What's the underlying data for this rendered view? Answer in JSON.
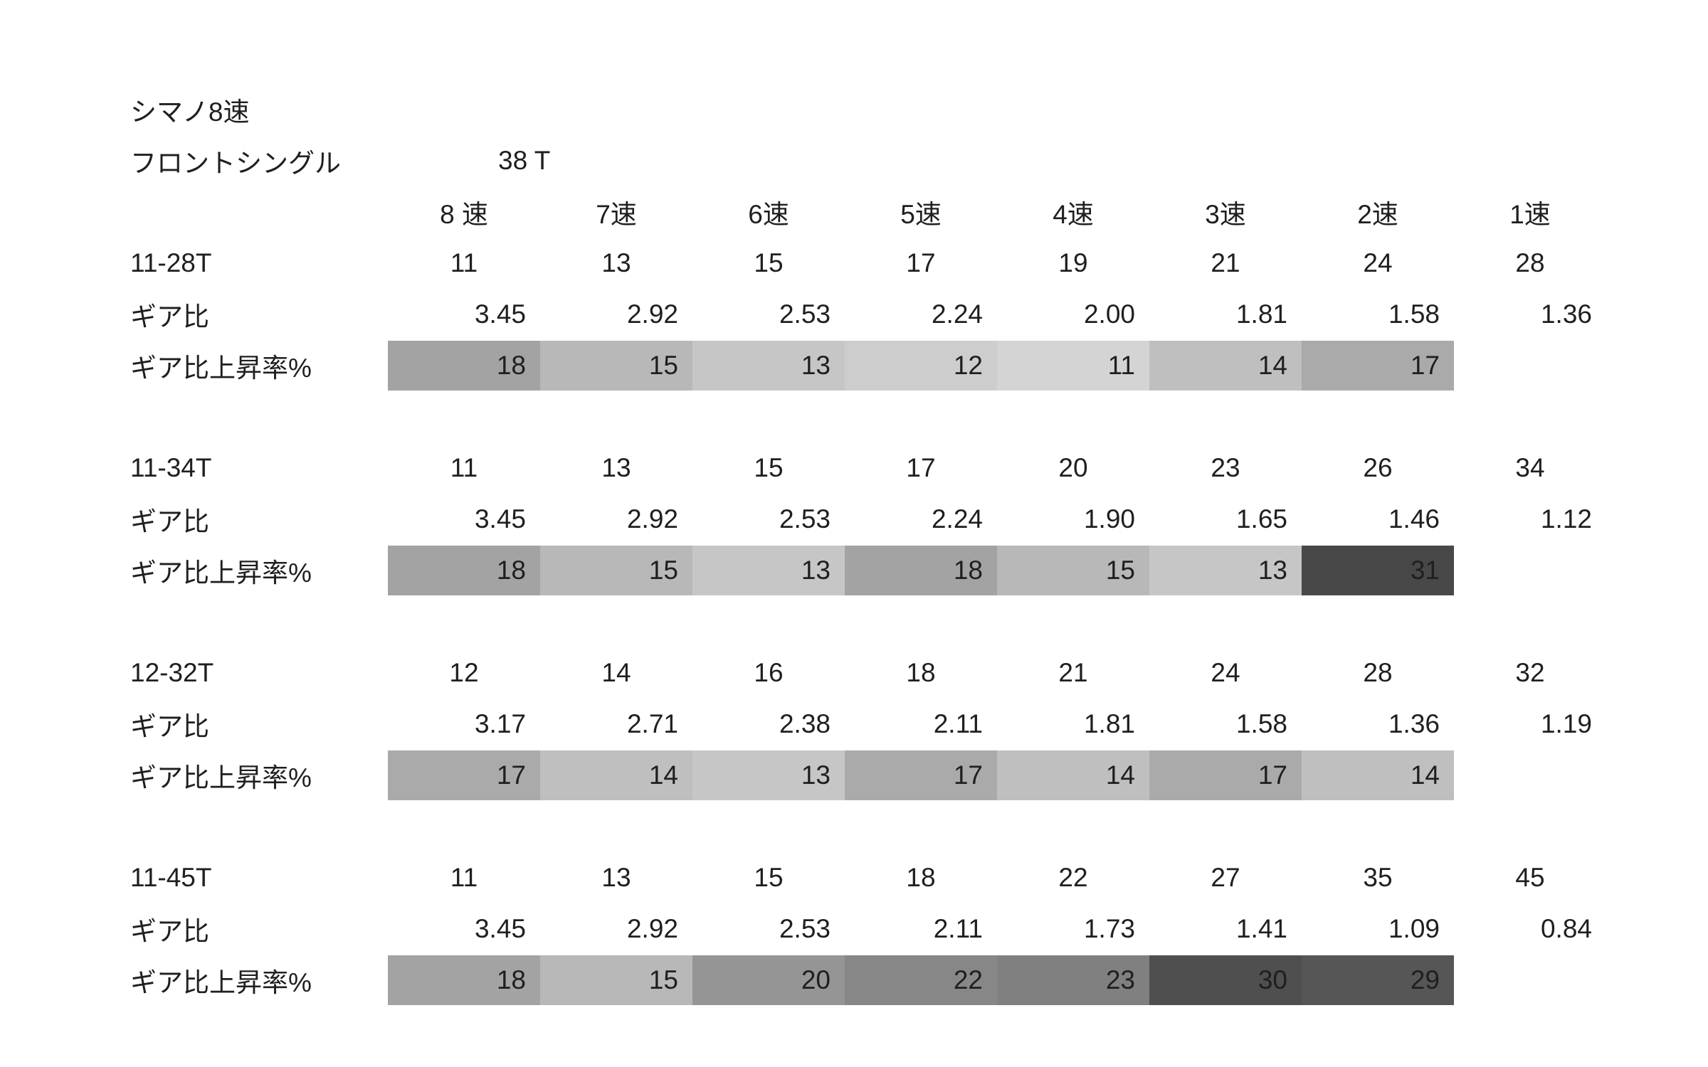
{
  "page": {
    "background": "#ffffff",
    "text_color": "#1f1f1f"
  },
  "title": "シマノ8速",
  "subtitle": {
    "label": "フロントシングル",
    "chainring": "38 T"
  },
  "header": {
    "speed_columns": [
      "8 速",
      "7速",
      "6速",
      "5速",
      "4速",
      "3速",
      "2速",
      "1速"
    ]
  },
  "row_labels": {
    "gear_ratio": "ギア比",
    "rise_rate": "ギア比上昇率%"
  },
  "groups": [
    {
      "cassette": "11-28T",
      "cogs": [
        "11",
        "13",
        "15",
        "17",
        "19",
        "21",
        "24",
        "28"
      ],
      "ratios": [
        "3.45",
        "2.92",
        "2.53",
        "2.24",
        "2.00",
        "1.81",
        "1.58",
        "1.36"
      ],
      "rise": [
        {
          "value": "18",
          "color": "#a3a3a3"
        },
        {
          "value": "15",
          "color": "#b8b8b8"
        },
        {
          "value": "13",
          "color": "#c6c6c6"
        },
        {
          "value": "12",
          "color": "#cdcdcd"
        },
        {
          "value": "11",
          "color": "#d4d4d4"
        },
        {
          "value": "14",
          "color": "#bfbfbf"
        },
        {
          "value": "17",
          "color": "#aaaaaa"
        }
      ]
    },
    {
      "cassette": "11-34T",
      "cogs": [
        "11",
        "13",
        "15",
        "17",
        "20",
        "23",
        "26",
        "34"
      ],
      "ratios": [
        "3.45",
        "2.92",
        "2.53",
        "2.24",
        "1.90",
        "1.65",
        "1.46",
        "1.12"
      ],
      "rise": [
        {
          "value": "18",
          "color": "#a3a3a3"
        },
        {
          "value": "15",
          "color": "#b8b8b8"
        },
        {
          "value": "13",
          "color": "#c6c6c6"
        },
        {
          "value": "18",
          "color": "#a3a3a3"
        },
        {
          "value": "15",
          "color": "#b8b8b8"
        },
        {
          "value": "13",
          "color": "#c6c6c6"
        },
        {
          "value": "31",
          "color": "#484848"
        }
      ]
    },
    {
      "cassette": "12-32T",
      "cogs": [
        "12",
        "14",
        "16",
        "18",
        "21",
        "24",
        "28",
        "32"
      ],
      "ratios": [
        "3.17",
        "2.71",
        "2.38",
        "2.11",
        "1.81",
        "1.58",
        "1.36",
        "1.19"
      ],
      "rise": [
        {
          "value": "17",
          "color": "#aaaaaa"
        },
        {
          "value": "14",
          "color": "#bfbfbf"
        },
        {
          "value": "13",
          "color": "#c6c6c6"
        },
        {
          "value": "17",
          "color": "#aaaaaa"
        },
        {
          "value": "14",
          "color": "#bfbfbf"
        },
        {
          "value": "17",
          "color": "#aaaaaa"
        },
        {
          "value": "14",
          "color": "#bfbfbf"
        }
      ]
    },
    {
      "cassette": "11-45T",
      "cogs": [
        "11",
        "13",
        "15",
        "18",
        "22",
        "27",
        "35",
        "45"
      ],
      "ratios": [
        "3.45",
        "2.92",
        "2.53",
        "2.11",
        "1.73",
        "1.41",
        "1.09",
        "0.84"
      ],
      "rise": [
        {
          "value": "18",
          "color": "#a3a3a3"
        },
        {
          "value": "15",
          "color": "#b8b8b8"
        },
        {
          "value": "20",
          "color": "#959595"
        },
        {
          "value": "22",
          "color": "#878787"
        },
        {
          "value": "23",
          "color": "#808080"
        },
        {
          "value": "30",
          "color": "#4f4f4f"
        },
        {
          "value": "29",
          "color": "#565656"
        }
      ]
    }
  ]
}
